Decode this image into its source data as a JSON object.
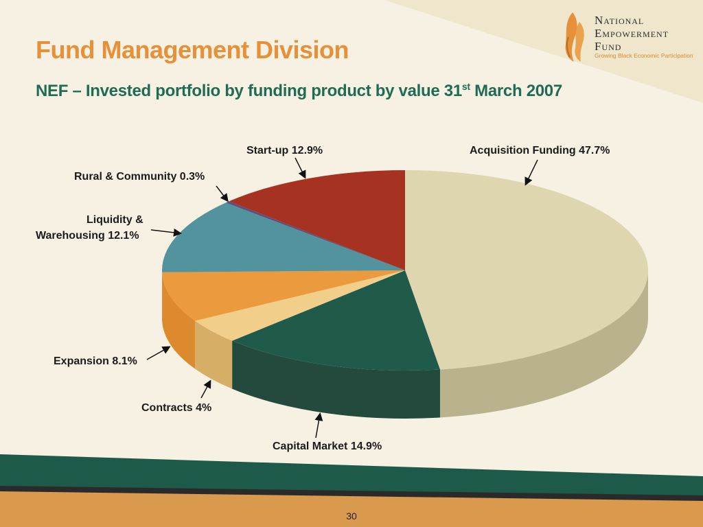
{
  "header": {
    "title": "Fund Management Division",
    "subtitle_main": "NEF – Invested portfolio by funding product by value 31",
    "subtitle_sup": "st",
    "subtitle_end": " March 2007"
  },
  "logo": {
    "line1": "National",
    "line2": "Empowerment",
    "line3": "Fund",
    "tagline": "Growing Black Economic Participation"
  },
  "page_number": "30",
  "colors": {
    "title": "#e6903a",
    "subtitle": "#1f6b53",
    "band_green": "#1d5a49",
    "band_orange": "#d99a4e"
  },
  "chart_data": {
    "type": "pie",
    "title": "NEF – Invested portfolio by funding product by value 31st March 2007",
    "series": [
      {
        "category": "Acquisition Funding",
        "value": 47.7,
        "label": "Acquisition Funding 47.7%",
        "color": "#ddd6ae",
        "side_color": "#b9b28d"
      },
      {
        "category": "Capital Market",
        "value": 14.9,
        "label": "Capital Market 14.9%",
        "color": "#205a4a",
        "side_color": "#244a3d"
      },
      {
        "category": "Contracts",
        "value": 4,
        "label": "Contracts 4%",
        "color": "#f1cf8a",
        "side_color": "#d6ae65"
      },
      {
        "category": "Expansion",
        "value": 8.1,
        "label": "Expansion 8.1%",
        "color": "#eb9a3d",
        "side_color": "#dd8a2e"
      },
      {
        "category": "Liquidity & Warehousing",
        "value": 12.1,
        "label_line1": "Liquidity &",
        "label_line2": "Warehousing 12.1%",
        "color": "#53939e",
        "side_color": "#3f7a85"
      },
      {
        "category": "Rural & Community",
        "value": 0.3,
        "label": "Rural & Community 0.3%",
        "color": "#5d4f7e",
        "side_color": "#4a3f66"
      },
      {
        "category": "Start-up",
        "value": 12.9,
        "label": "Start-up 12.9%",
        "color": "#a63322",
        "side_color": "#8a2a1c"
      }
    ]
  }
}
